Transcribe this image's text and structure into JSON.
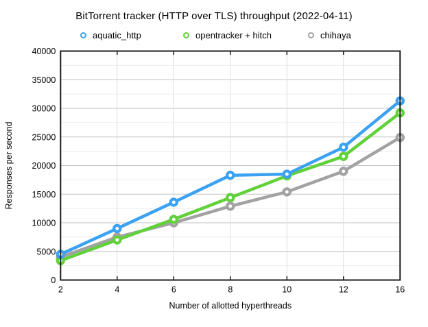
{
  "title": "BitTorrent tracker (HTTP over TLS) throughput (2022-04-11)",
  "background_color": "#ffffff",
  "chart_data": {
    "type": "line",
    "title": "BitTorrent tracker (HTTP over TLS) throughput (2022-04-11)",
    "xlabel": "Number of allotted hyperthreads",
    "ylabel": "Responses per second",
    "categories": [
      "2",
      "4",
      "6",
      "8",
      "10",
      "12",
      "16"
    ],
    "series": [
      {
        "name": "aquatic_http",
        "color": "#3ba1f2",
        "values": [
          4500,
          9000,
          13600,
          18300,
          18500,
          23200,
          31300
        ]
      },
      {
        "name": "opentracker + hitch",
        "color": "#61d13a",
        "values": [
          3400,
          7000,
          10600,
          14400,
          18200,
          21600,
          29200
        ]
      },
      {
        "name": "chihaya",
        "color": "#a2a2a2",
        "values": [
          4000,
          7500,
          10000,
          12900,
          15400,
          19000,
          24900
        ]
      }
    ],
    "ylim": [
      0,
      40000
    ],
    "ytick_step": 5000,
    "minor_ytick_step": 2500,
    "y_tick_labels": [
      "0",
      "5000",
      "10000",
      "15000",
      "20000",
      "25000",
      "30000",
      "35000",
      "40000"
    ],
    "grid": true,
    "legend_position": "top",
    "marker_style": "open-circle",
    "frame_color": "#1c1c1c",
    "major_grid_color": "#c2c2c2",
    "minor_grid_color": "#ececec",
    "vertical_grid_color": "#dedede"
  }
}
